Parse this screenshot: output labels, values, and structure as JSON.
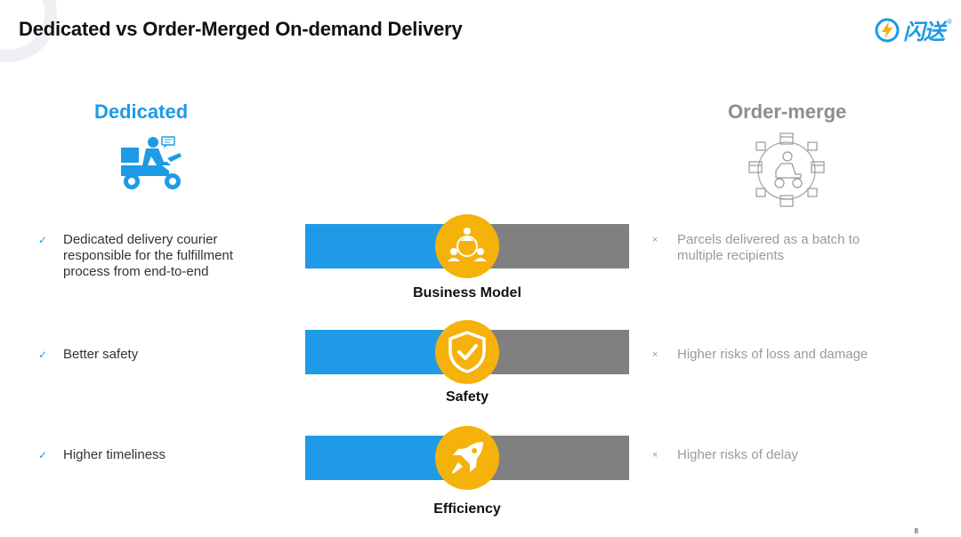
{
  "title": "Dedicated vs Order-Merged On-demand Delivery",
  "logo": {
    "text": "闪送",
    "reg": "®",
    "icon": "lightning-icon"
  },
  "columns": {
    "left": {
      "heading": "Dedicated",
      "icon": "scooter-courier-icon",
      "color": "#1e9be6"
    },
    "right": {
      "heading": "Order-merge",
      "icon": "merged-parcels-icon",
      "color": "#8d8d8d"
    }
  },
  "rows": [
    {
      "label": "Business Model",
      "icon": "people-network-icon",
      "left": {
        "mark": "✓",
        "text": "Dedicated delivery courier responsible for the fulfillment process from end-to-end"
      },
      "right": {
        "mark": "×",
        "text": "Parcels delivered as a batch to multiple recipients"
      }
    },
    {
      "label": "Safety",
      "icon": "shield-check-icon",
      "left": {
        "mark": "✓",
        "text": "Better safety"
      },
      "right": {
        "mark": "×",
        "text": "Higher risks of loss and damage"
      }
    },
    {
      "label": "Efficiency",
      "icon": "rocket-icon",
      "left": {
        "mark": "✓",
        "text": "Higher timeliness"
      },
      "right": {
        "mark": "×",
        "text": "Higher risks of delay"
      }
    }
  ],
  "colors": {
    "blue": "#1f9ae6",
    "grey": "#808080",
    "accent": "#f5b20b"
  },
  "page_number": "8"
}
